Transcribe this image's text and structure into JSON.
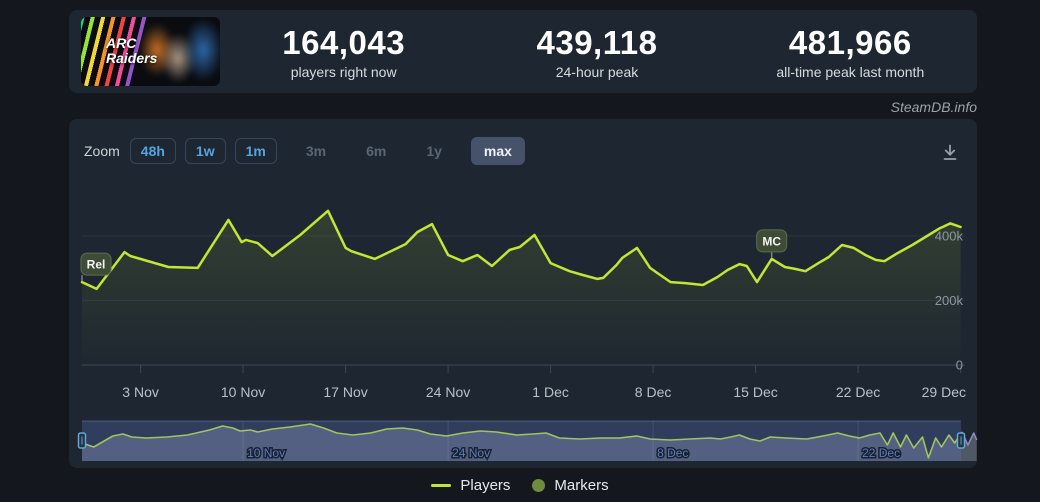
{
  "page": {
    "watermark": "SteamDB.info"
  },
  "header": {
    "game": {
      "title_line1": "ARC",
      "title_line2": "Raiders"
    },
    "stats": [
      {
        "value": "164,043",
        "label": "players right now"
      },
      {
        "value": "439,118",
        "label": "24-hour peak"
      },
      {
        "value": "481,966",
        "label": "all-time peak last month"
      }
    ]
  },
  "chart_controls": {
    "zoom_label": "Zoom",
    "buttons": [
      {
        "label": "48h",
        "state": "outline"
      },
      {
        "label": "1w",
        "state": "outline"
      },
      {
        "label": "1m",
        "state": "outline"
      },
      {
        "label": "3m",
        "state": "disabled"
      },
      {
        "label": "6m",
        "state": "disabled"
      },
      {
        "label": "1y",
        "state": "disabled"
      },
      {
        "label": "max",
        "state": "selected"
      }
    ]
  },
  "legend": {
    "items": [
      {
        "label": "Players",
        "marker": "line"
      },
      {
        "label": "Markers",
        "marker": "dot"
      }
    ]
  },
  "colors": {
    "line": "#c3e634",
    "area_tint": "#c3e634",
    "marker_badge_bg": "#3e4b36",
    "marker_badge_border": "#5c6d4c",
    "accent_blue": "#53a4e0",
    "nav_label": "#5e7cc2",
    "nav_mask": "rgba(92,112,195,0.30)",
    "nav_area": "rgba(185,196,212,0.32)",
    "nav_dim_line": "#948dc0",
    "handle_stroke": "#5fa8d8",
    "grid": "#2a3340",
    "axis": "#3d4754",
    "x_label": "#b9c0c8",
    "y_label": "#8d97a3",
    "legend_dot": "#6f8b3e"
  },
  "chart_data": {
    "type": "line",
    "title": "",
    "x_range": {
      "start_date": "30 Oct",
      "end_date": "30 Dec",
      "days": 61
    },
    "y_axis": {
      "min": 0,
      "max": 500000,
      "ticks": [
        {
          "valueK": 400,
          "label": "400k"
        },
        {
          "valueK": 200,
          "label": "200k"
        },
        {
          "valueK": 0,
          "label": "0"
        }
      ]
    },
    "x_ticks": [
      {
        "day": 4,
        "label": "3 Nov"
      },
      {
        "day": 11,
        "label": "10 Nov"
      },
      {
        "day": 18,
        "label": "17 Nov"
      },
      {
        "day": 25,
        "label": "24 Nov"
      },
      {
        "day": 32,
        "label": "1 Dec"
      },
      {
        "day": 39,
        "label": "8 Dec"
      },
      {
        "day": 46,
        "label": "15 Dec"
      },
      {
        "day": 53,
        "label": "22 Dec"
      },
      {
        "day": 60,
        "label": "29 Dec"
      }
    ],
    "series": [
      {
        "name": "Players",
        "unit": "thousands of players",
        "points_day_valueK": [
          [
            0,
            257
          ],
          [
            1,
            236
          ],
          [
            2.9,
            350
          ],
          [
            3.3,
            338
          ],
          [
            5.9,
            304
          ],
          [
            7.9,
            301
          ],
          [
            10,
            450
          ],
          [
            10.9,
            381
          ],
          [
            11.2,
            388
          ],
          [
            12,
            378
          ],
          [
            13,
            338
          ],
          [
            14.9,
            403
          ],
          [
            16.8,
            478
          ],
          [
            18,
            363
          ],
          [
            18.4,
            353
          ],
          [
            20,
            329
          ],
          [
            22.1,
            375
          ],
          [
            22.9,
            412
          ],
          [
            23.9,
            437
          ],
          [
            25,
            341
          ],
          [
            26,
            322
          ],
          [
            27,
            341
          ],
          [
            28,
            307
          ],
          [
            29.2,
            357
          ],
          [
            29.9,
            366
          ],
          [
            30.9,
            403
          ],
          [
            32,
            316
          ],
          [
            32.3,
            310
          ],
          [
            33.3,
            291
          ],
          [
            34.2,
            279
          ],
          [
            35.2,
            267
          ],
          [
            35.6,
            270
          ],
          [
            36.5,
            310
          ],
          [
            36.9,
            332
          ],
          [
            37.9,
            363
          ],
          [
            38.8,
            301
          ],
          [
            39.3,
            285
          ],
          [
            40.2,
            257
          ],
          [
            41.2,
            254
          ],
          [
            42.4,
            248
          ],
          [
            43.4,
            273
          ],
          [
            44.1,
            295
          ],
          [
            44.9,
            313
          ],
          [
            45.4,
            307
          ],
          [
            46.1,
            257
          ],
          [
            47.1,
            329
          ],
          [
            48,
            304
          ],
          [
            48.7,
            298
          ],
          [
            49.4,
            291
          ],
          [
            50.3,
            316
          ],
          [
            51,
            335
          ],
          [
            51.9,
            372
          ],
          [
            52.7,
            363
          ],
          [
            53.5,
            341
          ],
          [
            54.2,
            326
          ],
          [
            54.8,
            322
          ],
          [
            55.7,
            347
          ],
          [
            56.7,
            372
          ],
          [
            57.6,
            397
          ],
          [
            58.5,
            422
          ],
          [
            59.3,
            439
          ],
          [
            59.7,
            433
          ],
          [
            60,
            428
          ]
        ]
      }
    ],
    "markers": [
      {
        "label": "Rel",
        "day": 0,
        "valueK": 257
      },
      {
        "label": "MC",
        "day": 47.1,
        "valueK": 329
      }
    ],
    "navigator": {
      "ticks": [
        {
          "day": 11,
          "label": "10 Nov"
        },
        {
          "day": 25,
          "label": "24 Nov"
        },
        {
          "day": 39,
          "label": "8 Dec"
        },
        {
          "day": 53,
          "label": "22 Dec"
        }
      ],
      "selection_start_day": 0,
      "selection_end_day": 60.03,
      "points_day_valueK": [
        [
          0,
          225
        ],
        [
          0.8,
          175
        ],
        [
          2.1,
          313
        ],
        [
          2.8,
          338
        ],
        [
          3.4,
          300
        ],
        [
          4.4,
          288
        ],
        [
          5.8,
          300
        ],
        [
          7.2,
          325
        ],
        [
          8.7,
          388
        ],
        [
          9.6,
          438
        ],
        [
          10.3,
          413
        ],
        [
          10.8,
          375
        ],
        [
          11.5,
          388
        ],
        [
          12,
          363
        ],
        [
          13,
          400
        ],
        [
          14.2,
          425
        ],
        [
          15.6,
          463
        ],
        [
          16.5,
          413
        ],
        [
          17.4,
          350
        ],
        [
          18.5,
          325
        ],
        [
          19.7,
          350
        ],
        [
          20.8,
          400
        ],
        [
          21.9,
          413
        ],
        [
          22.9,
          388
        ],
        [
          23.8,
          338
        ],
        [
          24.9,
          313
        ],
        [
          26,
          350
        ],
        [
          27.2,
          375
        ],
        [
          28.3,
          363
        ],
        [
          29.7,
          325
        ],
        [
          30.8,
          338
        ],
        [
          31.7,
          350
        ],
        [
          32.6,
          288
        ],
        [
          34,
          275
        ],
        [
          35.4,
          288
        ],
        [
          36.7,
          288
        ],
        [
          37.9,
          313
        ],
        [
          38.8,
          275
        ],
        [
          40.2,
          263
        ],
        [
          41.5,
          275
        ],
        [
          42.9,
          288
        ],
        [
          43.6,
          275
        ],
        [
          44.3,
          300
        ],
        [
          44.9,
          325
        ],
        [
          45.6,
          275
        ],
        [
          46.3,
          250
        ],
        [
          47,
          300
        ],
        [
          48.1,
          288
        ],
        [
          49.5,
          275
        ],
        [
          50.6,
          313
        ],
        [
          51.6,
          350
        ],
        [
          52.4,
          313
        ],
        [
          53.1,
          288
        ],
        [
          53.8,
          325
        ],
        [
          54.5,
          350
        ],
        [
          55,
          200
        ],
        [
          55.4,
          350
        ],
        [
          55.9,
          175
        ],
        [
          56.3,
          325
        ],
        [
          56.8,
          163
        ],
        [
          57.4,
          300
        ],
        [
          57.8,
          40
        ],
        [
          58.3,
          288
        ],
        [
          58.7,
          175
        ],
        [
          59.2,
          325
        ],
        [
          59.6,
          225
        ],
        [
          60.1,
          363
        ],
        [
          60.5,
          200
        ],
        [
          60.9,
          350
        ],
        [
          61.1,
          263
        ]
      ]
    }
  }
}
